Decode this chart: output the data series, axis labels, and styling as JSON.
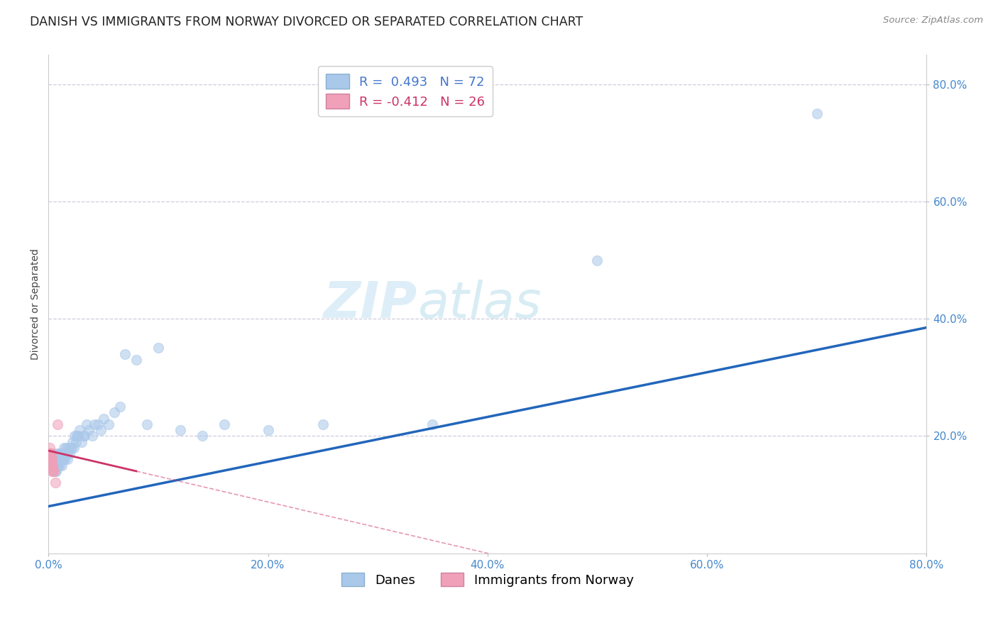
{
  "title": "DANISH VS IMMIGRANTS FROM NORWAY DIVORCED OR SEPARATED CORRELATION CHART",
  "source": "Source: ZipAtlas.com",
  "ylabel": "Divorced or Separated",
  "watermark_zip": "ZIP",
  "watermark_atlas": "atlas",
  "xlim": [
    0.0,
    0.8
  ],
  "ylim": [
    0.0,
    0.85
  ],
  "xticks": [
    0.0,
    0.2,
    0.4,
    0.6,
    0.8
  ],
  "yticks": [
    0.2,
    0.4,
    0.6,
    0.8
  ],
  "xticklabels": [
    "0.0%",
    "20.0%",
    "40.0%",
    "60.0%",
    "80.0%"
  ],
  "yticklabels": [
    "20.0%",
    "40.0%",
    "60.0%",
    "80.0%"
  ],
  "danes_R": 0.493,
  "danes_N": 72,
  "norway_R": -0.412,
  "norway_N": 26,
  "danes_color": "#aac8ea",
  "danes_line_color": "#2266bb",
  "norway_color": "#f0a0b8",
  "norway_line_color": "#cc3366",
  "background_color": "#ffffff",
  "grid_color": "#ccccdd",
  "tick_color": "#4488cc",
  "danes_x": [
    0.002,
    0.003,
    0.003,
    0.004,
    0.004,
    0.005,
    0.005,
    0.005,
    0.005,
    0.006,
    0.006,
    0.006,
    0.007,
    0.007,
    0.007,
    0.008,
    0.008,
    0.008,
    0.009,
    0.009,
    0.01,
    0.01,
    0.011,
    0.011,
    0.012,
    0.012,
    0.013,
    0.013,
    0.014,
    0.014,
    0.015,
    0.015,
    0.016,
    0.016,
    0.017,
    0.017,
    0.018,
    0.019,
    0.02,
    0.021,
    0.022,
    0.023,
    0.024,
    0.025,
    0.026,
    0.027,
    0.028,
    0.03,
    0.032,
    0.033,
    0.035,
    0.037,
    0.04,
    0.042,
    0.045,
    0.048,
    0.05,
    0.055,
    0.06,
    0.065,
    0.07,
    0.08,
    0.09,
    0.1,
    0.12,
    0.14,
    0.16,
    0.2,
    0.25,
    0.35,
    0.5,
    0.7
  ],
  "danes_y": [
    0.15,
    0.15,
    0.16,
    0.14,
    0.16,
    0.15,
    0.15,
    0.16,
    0.17,
    0.14,
    0.15,
    0.16,
    0.14,
    0.15,
    0.16,
    0.15,
    0.16,
    0.17,
    0.15,
    0.16,
    0.15,
    0.17,
    0.16,
    0.17,
    0.15,
    0.16,
    0.16,
    0.17,
    0.16,
    0.18,
    0.16,
    0.17,
    0.17,
    0.18,
    0.16,
    0.17,
    0.18,
    0.17,
    0.18,
    0.18,
    0.19,
    0.18,
    0.2,
    0.19,
    0.2,
    0.2,
    0.21,
    0.19,
    0.2,
    0.2,
    0.22,
    0.21,
    0.2,
    0.22,
    0.22,
    0.21,
    0.23,
    0.22,
    0.24,
    0.25,
    0.34,
    0.33,
    0.22,
    0.35,
    0.21,
    0.2,
    0.22,
    0.21,
    0.22,
    0.22,
    0.5,
    0.75
  ],
  "norway_x": [
    0.0005,
    0.0008,
    0.001,
    0.001,
    0.0012,
    0.0013,
    0.0014,
    0.0015,
    0.0016,
    0.0017,
    0.0018,
    0.002,
    0.002,
    0.0022,
    0.0023,
    0.0025,
    0.0026,
    0.003,
    0.003,
    0.0032,
    0.0035,
    0.004,
    0.004,
    0.005,
    0.006,
    0.008
  ],
  "norway_y": [
    0.16,
    0.17,
    0.17,
    0.18,
    0.17,
    0.17,
    0.17,
    0.17,
    0.16,
    0.16,
    0.16,
    0.16,
    0.17,
    0.16,
    0.17,
    0.16,
    0.16,
    0.15,
    0.16,
    0.15,
    0.14,
    0.14,
    0.15,
    0.14,
    0.12,
    0.22
  ],
  "title_fontsize": 12.5,
  "axis_label_fontsize": 10,
  "tick_fontsize": 11,
  "legend_fontsize": 13,
  "watermark_fontsize_zip": 52,
  "watermark_fontsize_atlas": 52,
  "watermark_color": "#ddeef8",
  "marker_size": 100,
  "marker_alpha": 0.55,
  "marker_edgewidth": 1.0,
  "blue_line_start_x": 0.0,
  "blue_line_start_y": 0.08,
  "blue_line_end_x": 0.8,
  "blue_line_end_y": 0.385,
  "pink_line_start_x": 0.0,
  "pink_line_start_y": 0.175,
  "pink_line_end_x": 0.08,
  "pink_line_end_y": 0.14
}
